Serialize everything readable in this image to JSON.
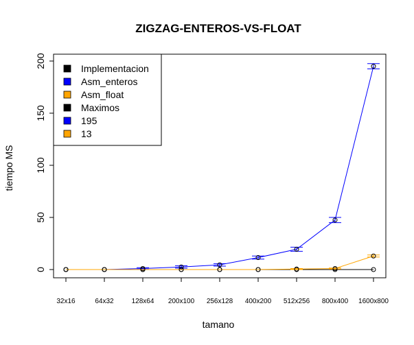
{
  "chart_data": {
    "type": "line",
    "title": "ZIGZAG-ENTEROS-VS-FLOAT",
    "xlabel": "tamano",
    "ylabel": "tiempo MS",
    "categories": [
      "32x16",
      "64x32",
      "128x64",
      "200x100",
      "256x128",
      "400x200",
      "512x256",
      "800x400",
      "1600x800"
    ],
    "ylim": [
      0,
      200
    ],
    "yticks": [
      0,
      50,
      100,
      150,
      200
    ],
    "grid": false,
    "legend_position": "top-left",
    "series": [
      {
        "name": "Implementacion",
        "color": "#000000",
        "values": [
          0,
          0,
          0,
          0,
          0,
          0,
          0,
          0,
          0
        ]
      },
      {
        "name": "Asm_enteros",
        "color": "#0000ff",
        "values": [
          0,
          0,
          1,
          2.5,
          4.5,
          11.5,
          19.5,
          47.5,
          195
        ],
        "error_bars": [
          0,
          0,
          0.8,
          1.2,
          1.2,
          1.5,
          2.0,
          2.5,
          2.5
        ]
      },
      {
        "name": "Asm_float",
        "color": "#ffa500",
        "values": [
          0,
          0,
          0,
          0,
          0,
          0,
          0.5,
          1,
          13
        ],
        "error_bars": [
          0,
          0,
          0,
          0,
          0,
          0,
          0.5,
          0.5,
          1.0
        ]
      }
    ],
    "legend": [
      {
        "label": "Implementacion",
        "color": "#000000"
      },
      {
        "label": "Asm_enteros",
        "color": "#0000ff"
      },
      {
        "label": "Asm_float",
        "color": "#ffa500"
      },
      {
        "label": "Maximos",
        "color": "#000000"
      },
      {
        "label": "195",
        "color": "#0000ff"
      },
      {
        "label": "13",
        "color": "#ffa500"
      }
    ]
  }
}
